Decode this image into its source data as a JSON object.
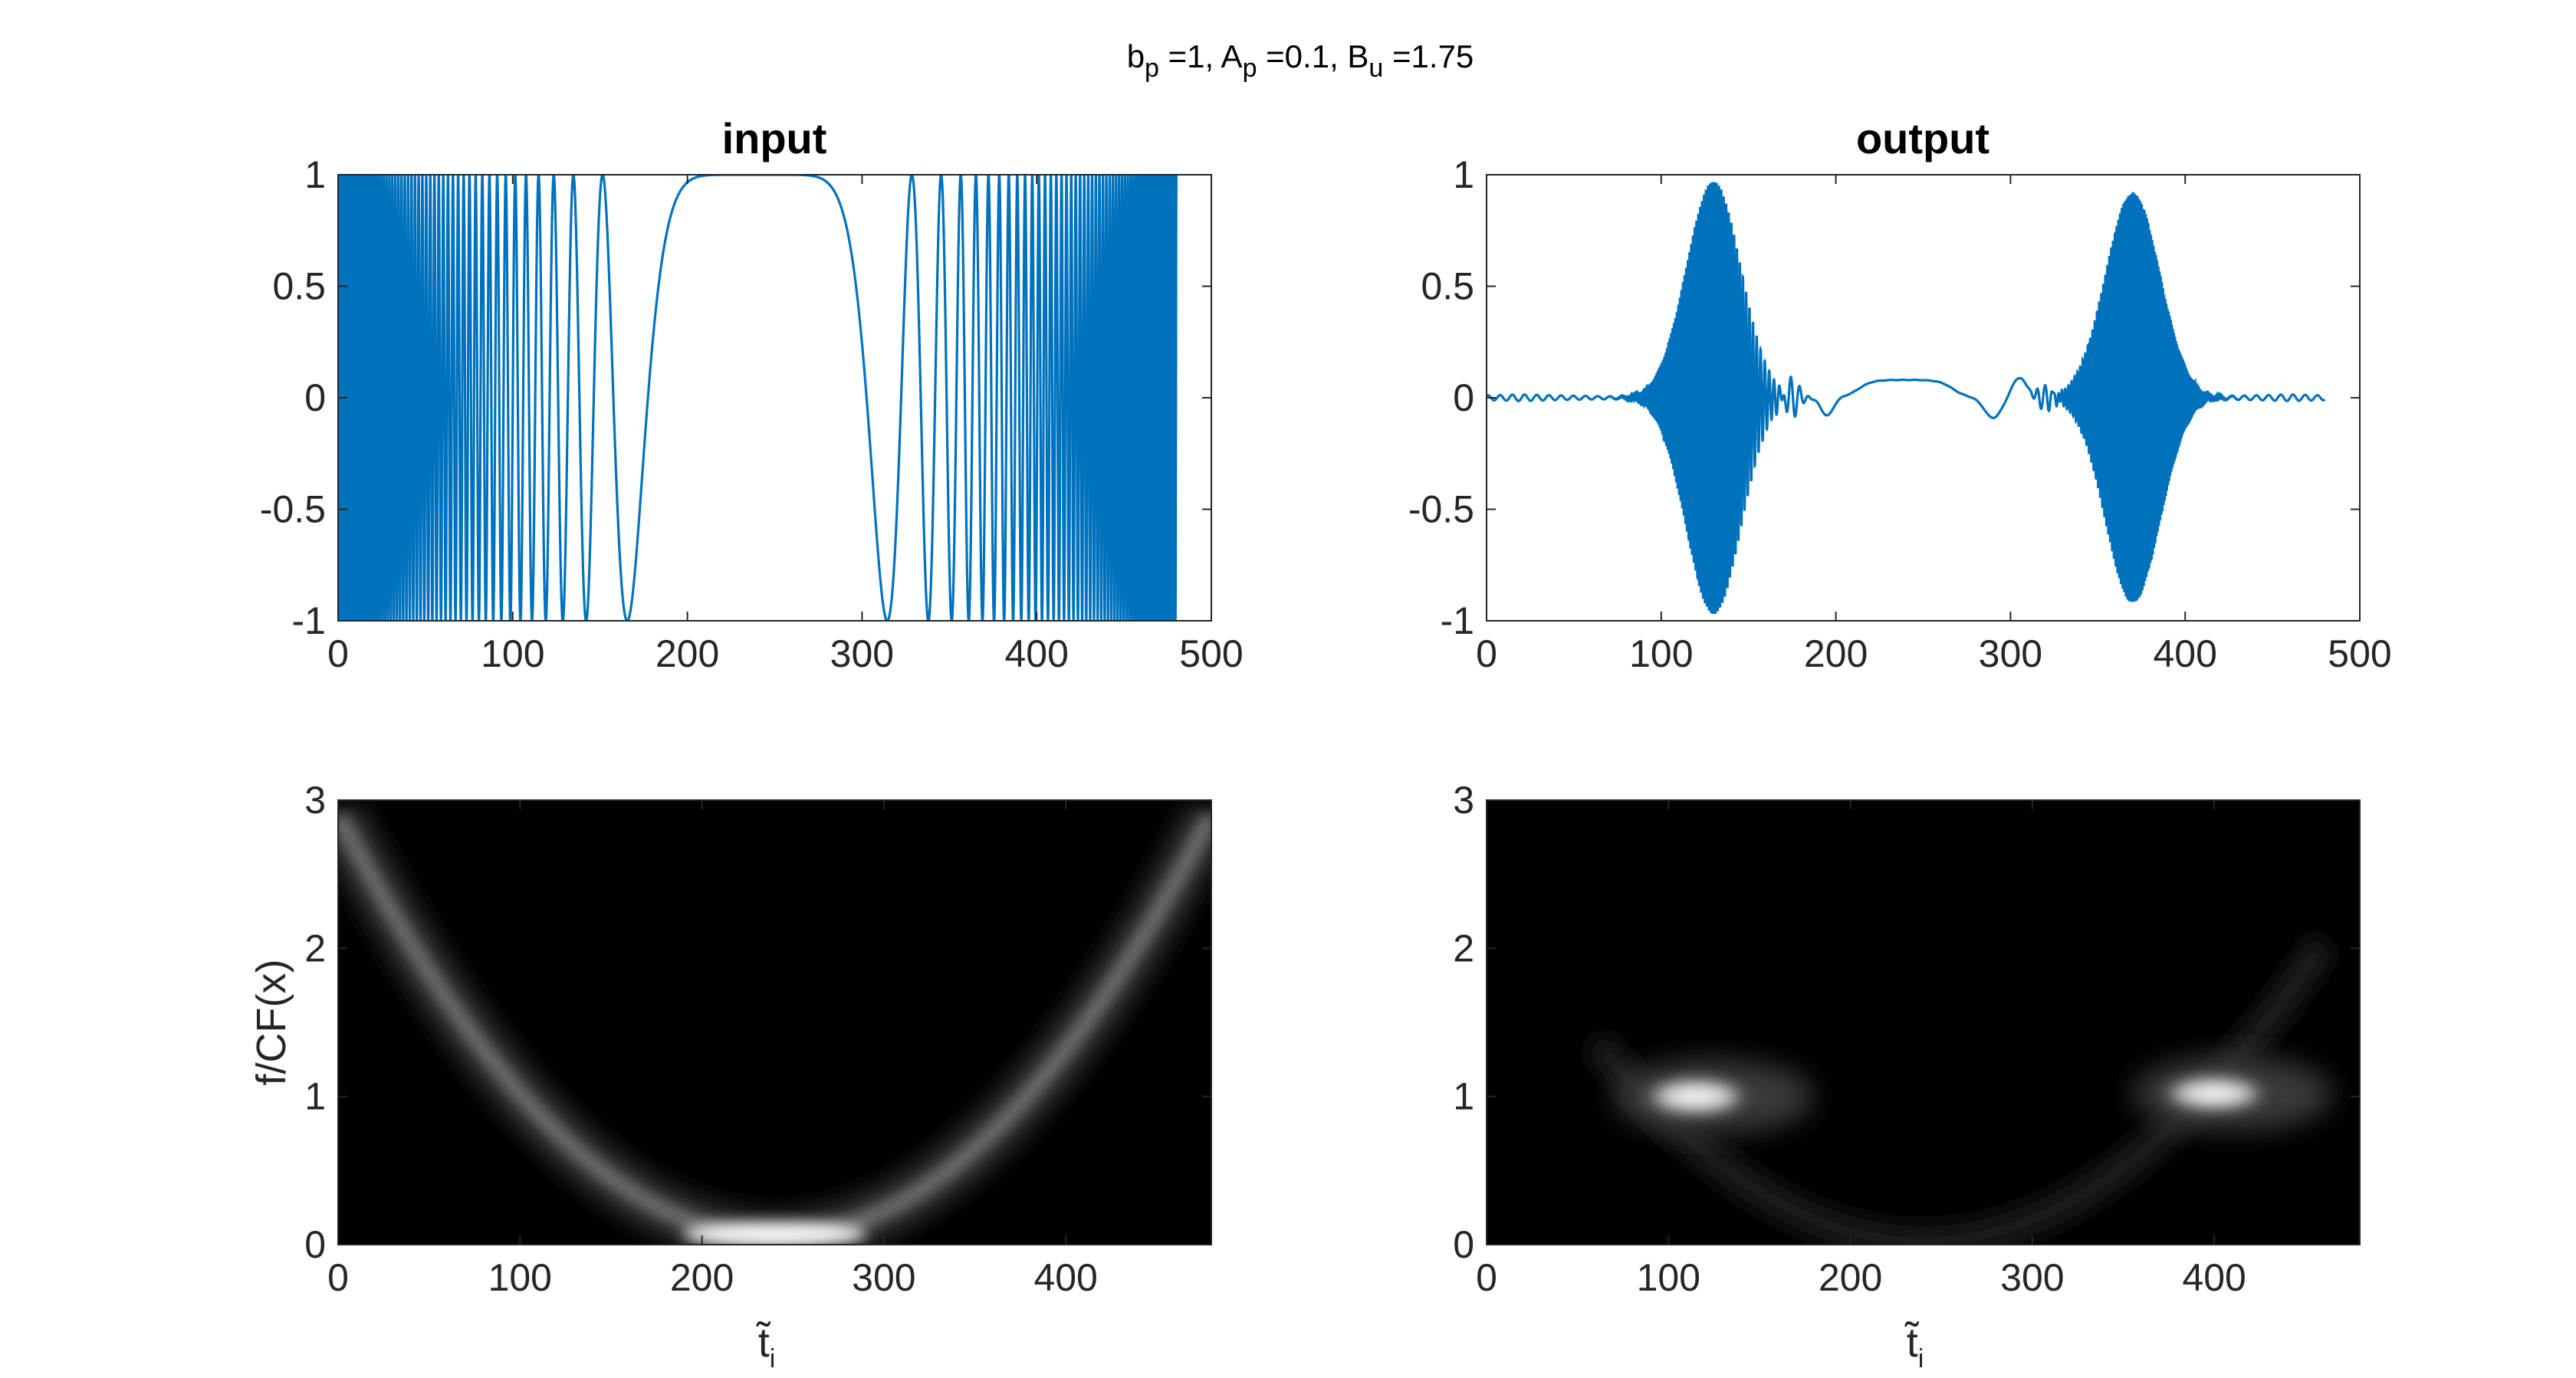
{
  "figure": {
    "super_title": {
      "b": "b",
      "b_sub": "p",
      "b_val": " =1, ",
      "a": "A",
      "a_sub": "p",
      "a_val": " =0.1, ",
      "c": "B",
      "c_sub": "u",
      "c_val": " =1.75"
    }
  },
  "chart_data": [
    {
      "type": "line",
      "title": "input",
      "xlim": [
        0,
        500
      ],
      "ylim": [
        -1,
        1
      ],
      "xticks": [
        0,
        100,
        200,
        300,
        400,
        500
      ],
      "yticks": [
        -1,
        -0.5,
        0,
        0.5,
        1
      ],
      "ytick_labels": [
        "-1",
        "-0.5",
        "0",
        "0.5",
        "1"
      ],
      "grid": false,
      "line_color": "#0072BD",
      "series": [
        {
          "function": "cos(phase)",
          "x_range": [
            0,
            480
          ],
          "flat_at": 240,
          "chirp_edge_cycles_per_unit": 0.9,
          "amplitude": 1
        }
      ]
    },
    {
      "type": "line",
      "title": "output",
      "xlim": [
        0,
        500
      ],
      "ylim": [
        -1,
        1
      ],
      "xticks": [
        0,
        100,
        200,
        300,
        400,
        500
      ],
      "yticks": [
        -1,
        -0.5,
        0,
        0.5,
        1
      ],
      "ytick_labels": [
        "-1",
        "-0.5",
        "0",
        "0.5",
        "1"
      ],
      "grid": false,
      "line_color": "#0072BD",
      "series": [
        {
          "x_range": [
            0,
            480
          ],
          "bursts": [
            {
              "center": 130,
              "peak": 0.97
            },
            {
              "center": 370,
              "peak": 0.92
            }
          ],
          "plateau": {
            "from": 205,
            "to": 275,
            "level": 0.08
          }
        }
      ]
    },
    {
      "type": "heatmap",
      "ylabel": "f/CF(x)",
      "xlabel": "t̃",
      "xlabel_sub": "i",
      "xlim": [
        0,
        480
      ],
      "ylim": [
        0,
        3
      ],
      "xticks": [
        0,
        100,
        200,
        300,
        400
      ],
      "yticks": [
        0,
        1,
        2,
        3
      ],
      "colormap": "gray",
      "ridge": {
        "shape": "parabola",
        "vertex_x": 240,
        "vertex_y": 0.05,
        "edge_y_at_0": 2.9
      }
    },
    {
      "type": "heatmap",
      "xlabel": "t̃",
      "xlabel_sub": "i",
      "xlim": [
        0,
        480
      ],
      "ylim": [
        0,
        3
      ],
      "xticks": [
        0,
        100,
        200,
        300,
        400
      ],
      "yticks": [
        0,
        1,
        2,
        3
      ],
      "colormap": "gray",
      "blobs": [
        {
          "x": 115,
          "y": 1.0
        },
        {
          "x": 400,
          "y": 1.02
        }
      ]
    }
  ]
}
